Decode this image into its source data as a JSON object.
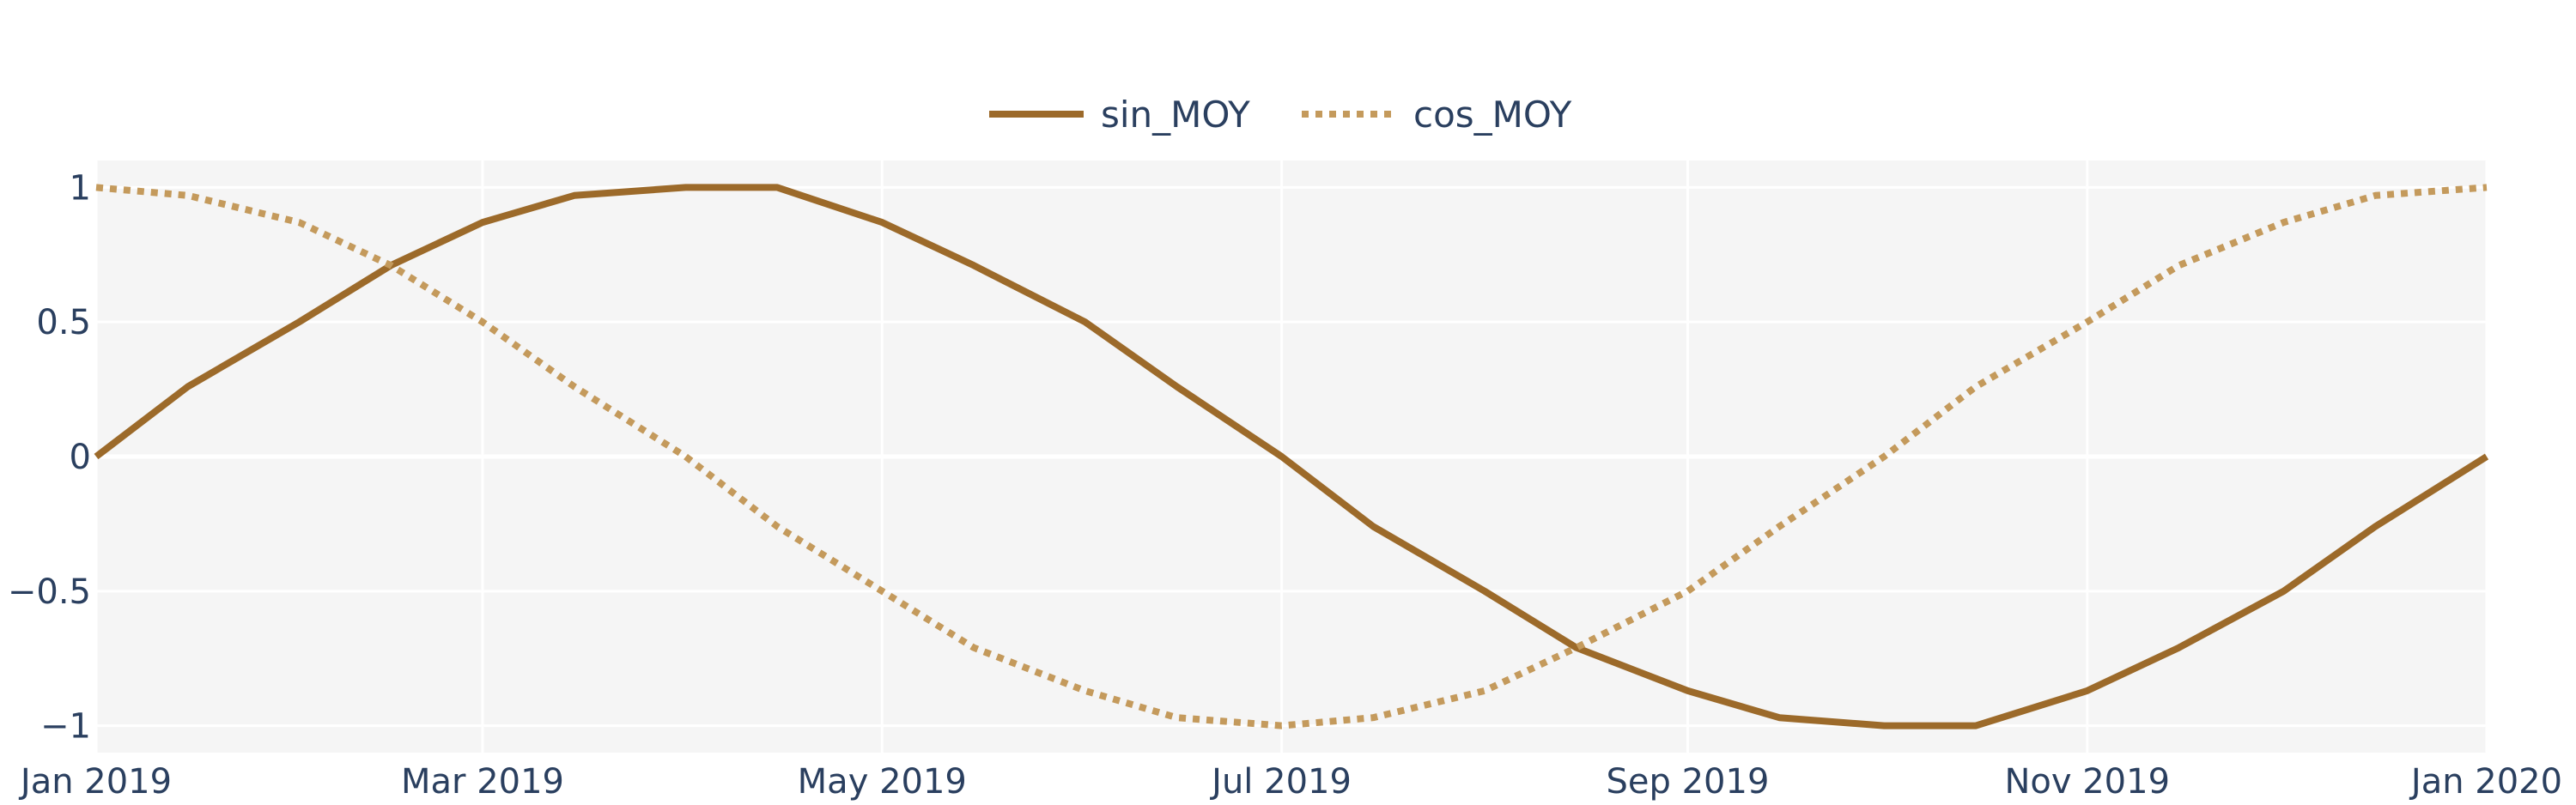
{
  "chart_data": {
    "type": "line",
    "title": "",
    "xlabel": "",
    "ylabel": "",
    "x_range": [
      "2019-01-01",
      "2020-01-01"
    ],
    "ylim": [
      -1.1,
      1.1
    ],
    "grid": true,
    "legend_position": "top-center",
    "x_ticks": [
      {
        "date": "2019-01-01",
        "label": "Jan 2019"
      },
      {
        "date": "2019-03-01",
        "label": "Mar 2019"
      },
      {
        "date": "2019-05-01",
        "label": "May 2019"
      },
      {
        "date": "2019-07-01",
        "label": "Jul 2019"
      },
      {
        "date": "2019-09-01",
        "label": "Sep 2019"
      },
      {
        "date": "2019-11-01",
        "label": "Nov 2019"
      },
      {
        "date": "2020-01-01",
        "label": "Jan 2020"
      }
    ],
    "y_ticks": [
      {
        "value": 1,
        "label": "1"
      },
      {
        "value": 0.5,
        "label": "0.5"
      },
      {
        "value": 0,
        "label": "0"
      },
      {
        "value": -0.5,
        "label": "−0.5"
      },
      {
        "value": -1,
        "label": "−1"
      }
    ],
    "series": [
      {
        "name": "sin_MOY",
        "color": "#9c6a2a",
        "dash": "solid",
        "x": [
          "2019-01-01",
          "2019-01-15",
          "2019-02-01",
          "2019-02-15",
          "2019-03-01",
          "2019-03-15",
          "2019-04-01",
          "2019-04-15",
          "2019-05-01",
          "2019-05-15",
          "2019-06-01",
          "2019-06-15",
          "2019-07-01",
          "2019-07-15",
          "2019-08-01",
          "2019-08-15",
          "2019-09-01",
          "2019-09-15",
          "2019-10-01",
          "2019-10-15",
          "2019-11-01",
          "2019-11-15",
          "2019-12-01",
          "2019-12-15",
          "2020-01-01"
        ],
        "y": [
          0,
          0.26,
          0.5,
          0.71,
          0.87,
          0.97,
          1,
          1,
          0.87,
          0.71,
          0.5,
          0.26,
          0,
          -0.26,
          -0.5,
          -0.71,
          -0.87,
          -0.97,
          -1,
          -1,
          -0.87,
          -0.71,
          -0.5,
          -0.26,
          0
        ]
      },
      {
        "name": "cos_MOY",
        "color": "#c49a5c",
        "dash": "dot",
        "x": [
          "2019-01-01",
          "2019-01-15",
          "2019-02-01",
          "2019-02-15",
          "2019-03-01",
          "2019-03-15",
          "2019-04-01",
          "2019-04-15",
          "2019-05-01",
          "2019-05-15",
          "2019-06-01",
          "2019-06-15",
          "2019-07-01",
          "2019-07-15",
          "2019-08-01",
          "2019-08-15",
          "2019-09-01",
          "2019-09-15",
          "2019-10-01",
          "2019-10-15",
          "2019-11-01",
          "2019-11-15",
          "2019-12-01",
          "2019-12-15",
          "2020-01-01"
        ],
        "y": [
          1,
          0.97,
          0.87,
          0.71,
          0.5,
          0.26,
          0,
          -0.26,
          -0.5,
          -0.71,
          -0.87,
          -0.97,
          -1,
          -0.97,
          -0.87,
          -0.71,
          -0.5,
          -0.26,
          0,
          0.26,
          0.5,
          0.71,
          0.87,
          0.97,
          1
        ]
      }
    ]
  }
}
